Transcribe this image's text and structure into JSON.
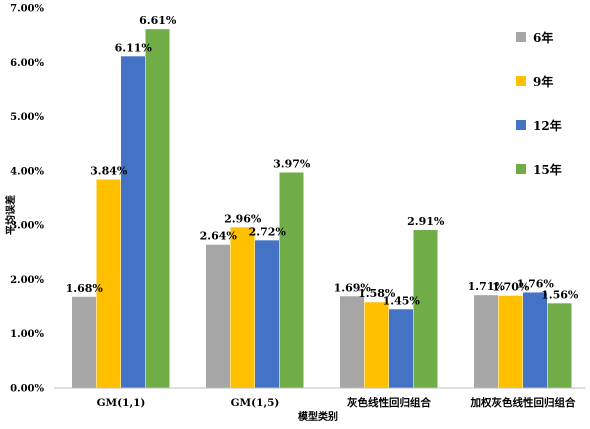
{
  "chart_data": {
    "type": "bar",
    "title": "",
    "xlabel": "模型类别",
    "ylabel": "平均误差",
    "categories": [
      "GM(1,1)",
      "GM(1,5)",
      "灰色线性回归组合",
      "加权灰色线性回归组合"
    ],
    "series": [
      {
        "name": "6年",
        "color": "#a6a6a6",
        "values": [
          1.68,
          2.64,
          1.69,
          1.71
        ],
        "labels": [
          "1.68%",
          "2.64%",
          "1.69%",
          "1.71%"
        ]
      },
      {
        "name": "9年",
        "color": "#ffc000",
        "values": [
          3.84,
          2.96,
          1.58,
          1.7
        ],
        "labels": [
          "3.84%",
          "2.96%",
          "1.58%",
          "1.70%"
        ]
      },
      {
        "name": "12年",
        "color": "#4472c4",
        "values": [
          6.11,
          2.72,
          1.45,
          1.76
        ],
        "labels": [
          "6.11%",
          "2.72%",
          "1.45%",
          "1.76%"
        ]
      },
      {
        "name": "15年",
        "color": "#70ad47",
        "values": [
          6.61,
          3.97,
          2.91,
          1.56
        ],
        "labels": [
          "6.61%",
          "3.97%",
          "2.91%",
          "1.56%"
        ]
      }
    ],
    "ylim": [
      0,
      7
    ],
    "yticks": [
      "0.00%",
      "1.00%",
      "2.00%",
      "3.00%",
      "4.00%",
      "5.00%",
      "6.00%",
      "7.00%"
    ],
    "grid": false,
    "legend_position": "right"
  }
}
